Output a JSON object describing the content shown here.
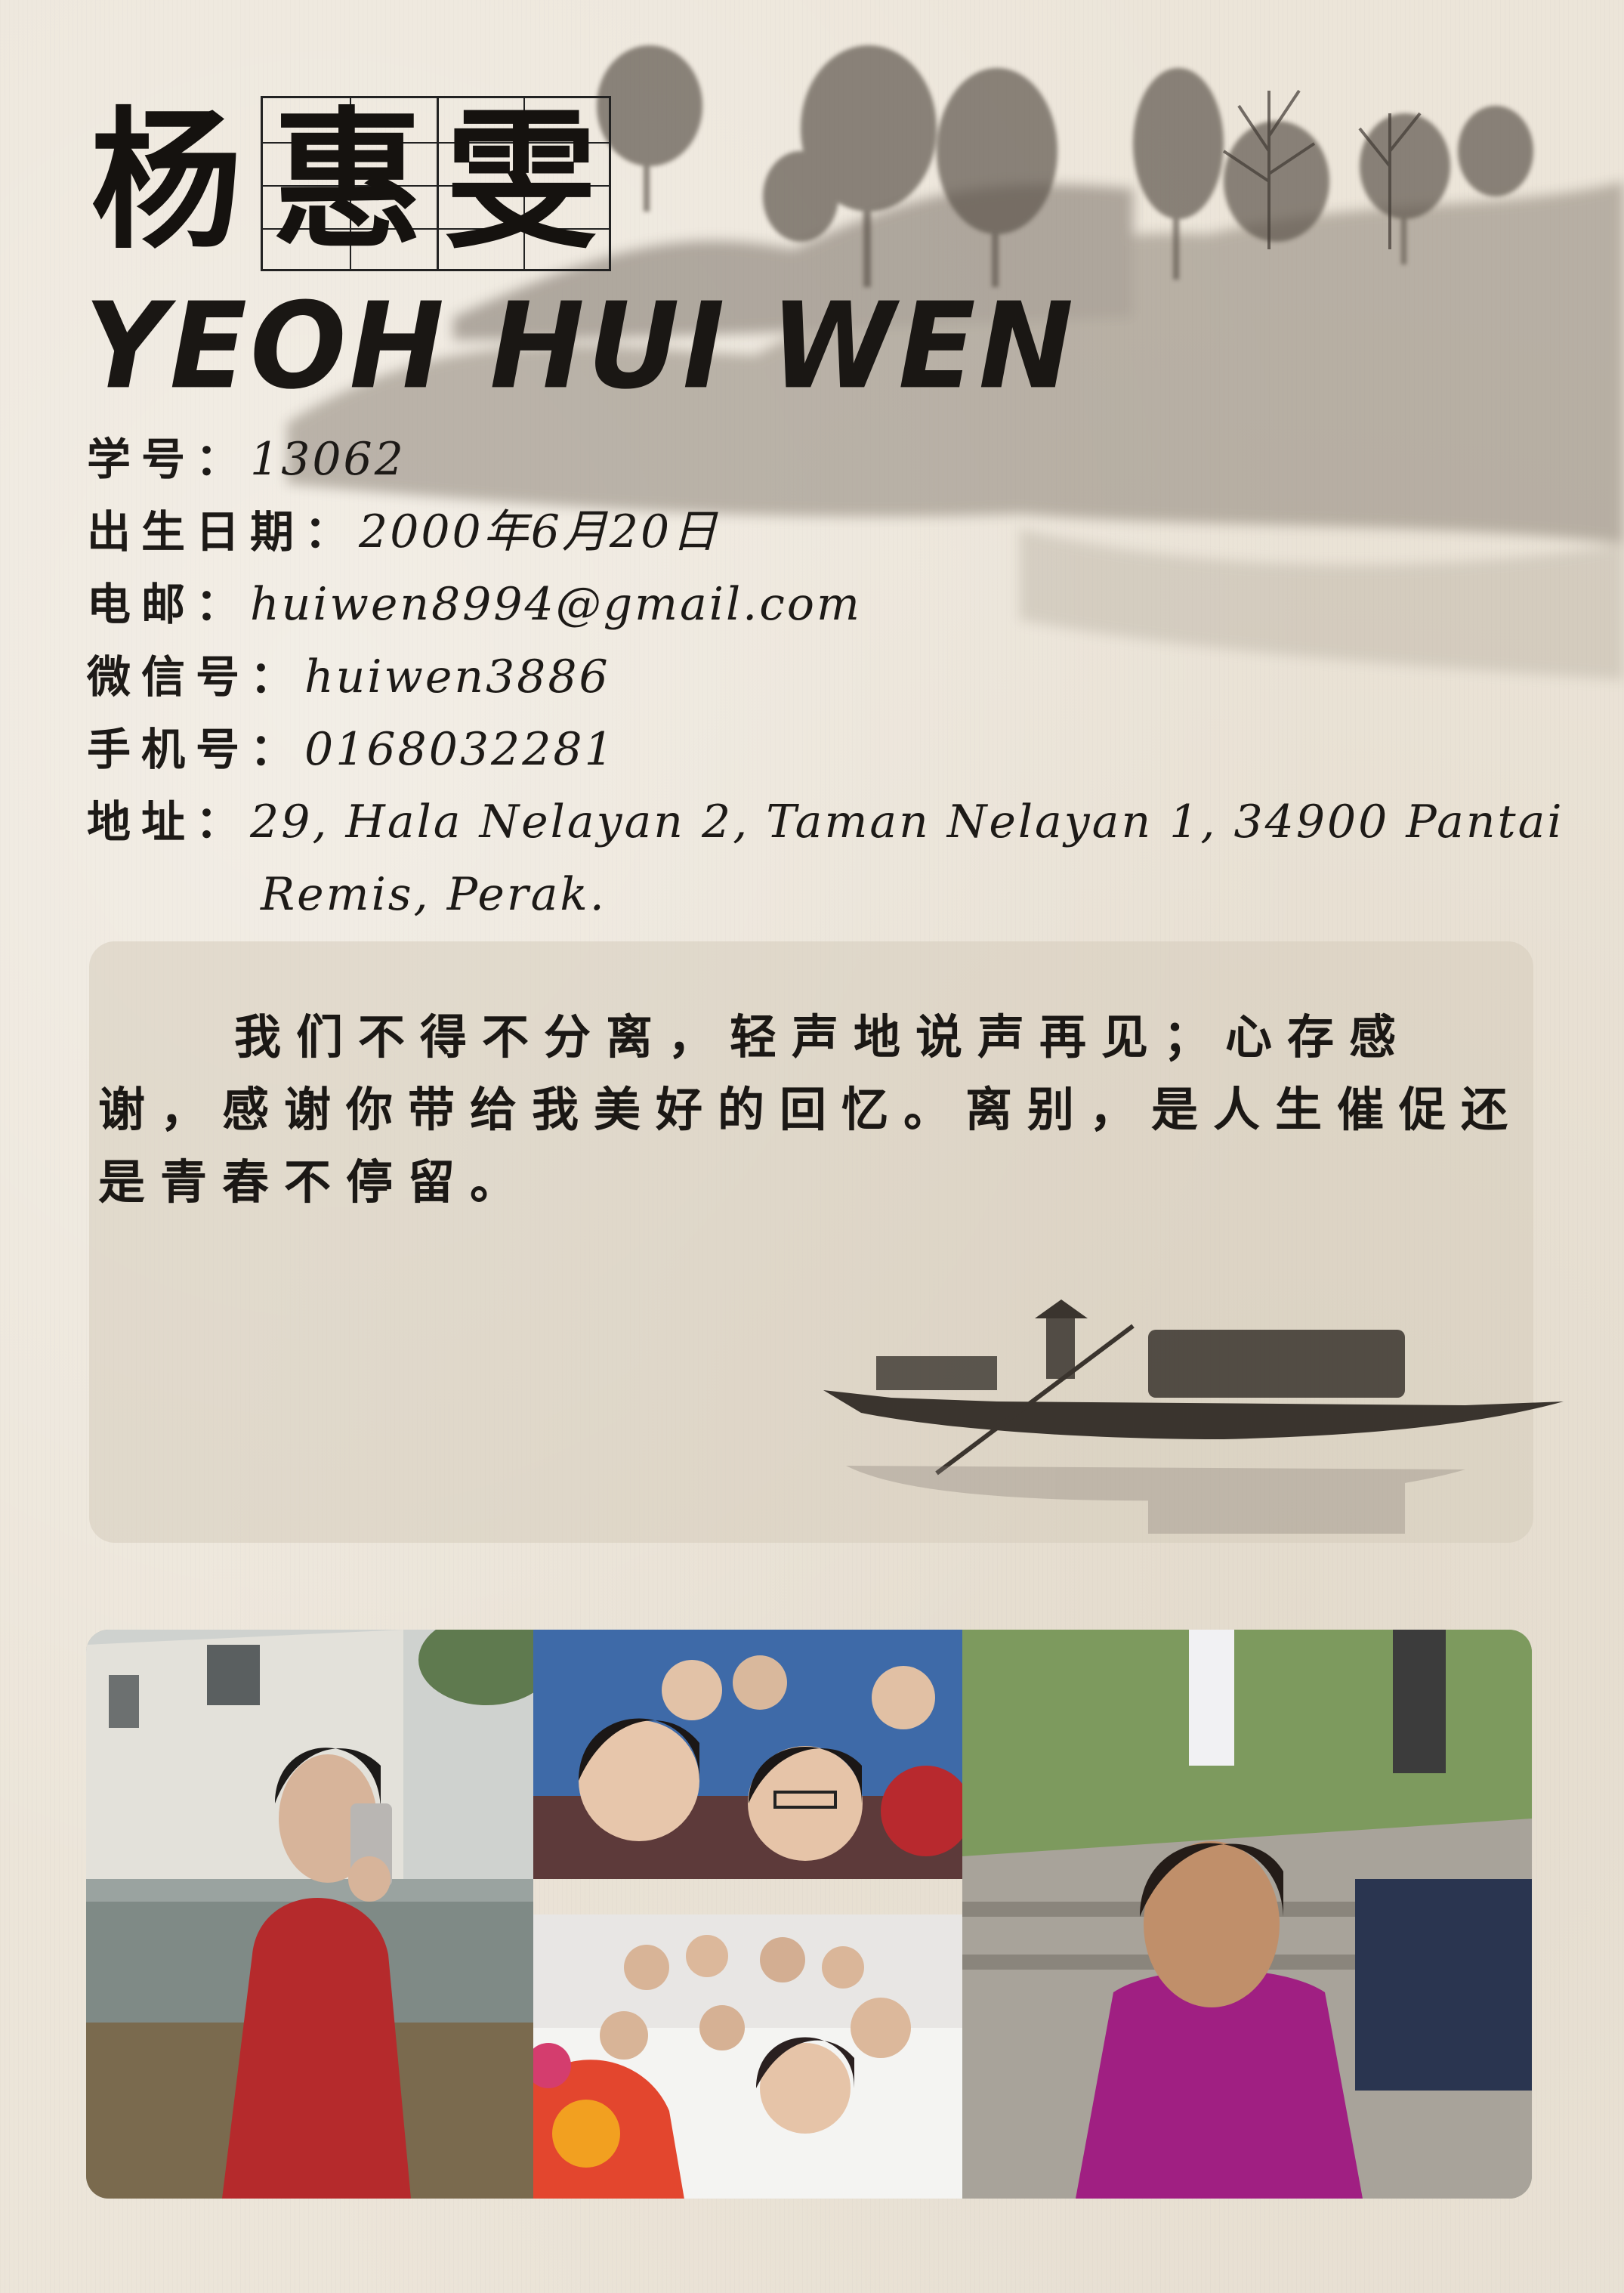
{
  "name": {
    "chinese_surname": "杨",
    "chinese_given_1": "惠",
    "chinese_given_2": "雯",
    "english": "YEOH  HUI  WEN"
  },
  "info": {
    "student_id": {
      "label": "学号：",
      "value": "13062"
    },
    "birthdate": {
      "label": "出生日期：",
      "value": "2000年6月20日"
    },
    "email": {
      "label": "电邮：",
      "value": "huiwen8994@gmail.com"
    },
    "wechat": {
      "label": "微信号：",
      "value": "huiwen3886"
    },
    "phone": {
      "label": "手机号：",
      "value": "0168032281"
    },
    "address": {
      "label": "地址：",
      "line1": "29, Hala Nelayan 2, Taman Nelayan 1, 34900 Pantai",
      "line2": "Remis, Perak."
    }
  },
  "quote": "我们不得不分离，轻声地说声再见；心存感谢，感谢你带给我美好的回忆。离别，是人生催促还是青春不停留。",
  "colors": {
    "ink": "#1d1a17",
    "paper": "#ece5d9",
    "panel": "#d6ccbb"
  }
}
